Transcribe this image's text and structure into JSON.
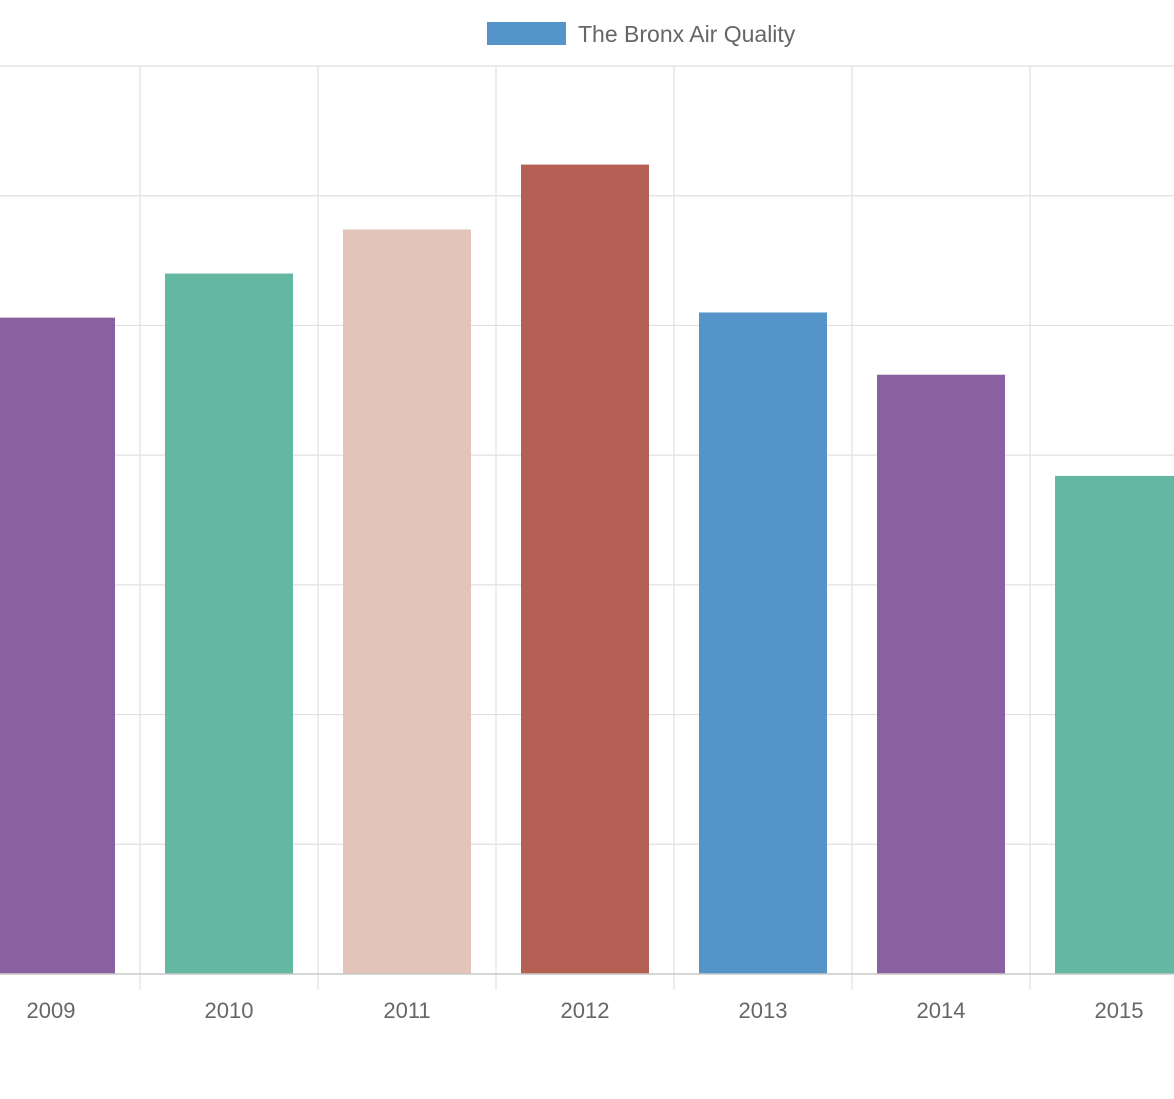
{
  "chart_data": {
    "type": "bar",
    "categories": [
      "2009",
      "2010",
      "2011",
      "2012",
      "2013",
      "2014",
      "2015"
    ],
    "series": [
      {
        "name": "The Bronx Air Quality",
        "values": [
          25.3,
          27.0,
          28.7,
          31.2,
          25.5,
          23.1,
          19.2
        ],
        "bar_colors": [
          "#8961a0",
          "#64b8a1",
          "#e2c4bb",
          "#b56055",
          "#5594c9",
          "#8961a0",
          "#64b8a1"
        ]
      }
    ],
    "legend": {
      "position": "top",
      "label": "The Bronx Air Quality",
      "swatch_color": "#5594c9"
    },
    "ylim": [
      0,
      35
    ],
    "grid": true,
    "y_ticks_visible": false,
    "title": "",
    "xlabel": "",
    "ylabel": ""
  }
}
